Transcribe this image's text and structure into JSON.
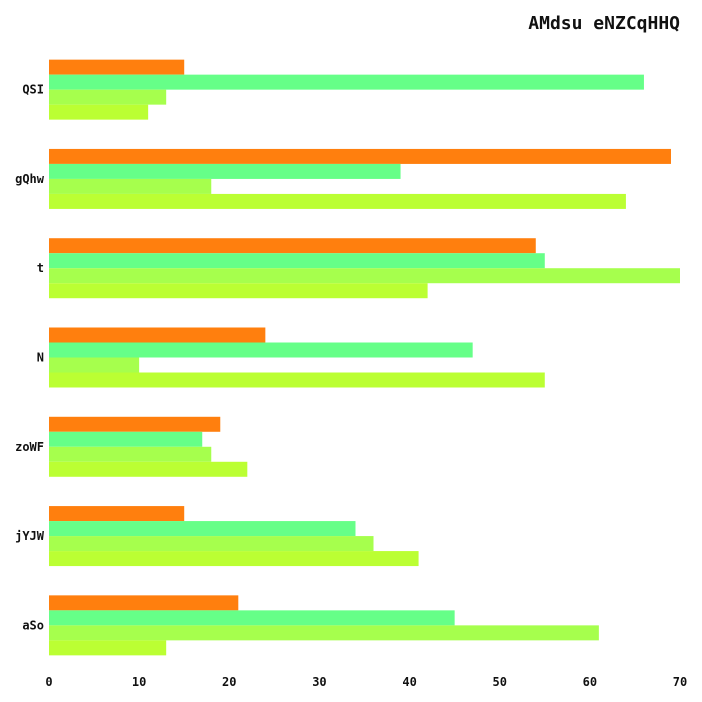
{
  "chart_data": {
    "type": "bar",
    "orientation": "horizontal",
    "title": "AMdsu eNZCqHHQ",
    "xlabel": "",
    "ylabel": "",
    "categories": [
      "QSI",
      "gQhw",
      "t",
      "N",
      "zoWF",
      "jYJW",
      "aSo"
    ],
    "x_ticks": [
      0,
      10,
      20,
      30,
      40,
      50,
      60,
      70
    ],
    "xlim": [
      0,
      70
    ],
    "grid": false,
    "legend": "none",
    "series": [
      {
        "values": [
          15,
          69,
          54,
          24,
          19,
          15,
          21
        ],
        "color": "#ff7f0e"
      },
      {
        "values": [
          66,
          39,
          55,
          47,
          17,
          34,
          45
        ],
        "color": "#66ff88"
      },
      {
        "values": [
          13,
          18,
          70,
          10,
          18,
          36,
          61
        ],
        "color": "#a6ff4d"
      },
      {
        "values": [
          11,
          64,
          42,
          55,
          22,
          41,
          13
        ],
        "color": "#bbff33"
      }
    ]
  }
}
